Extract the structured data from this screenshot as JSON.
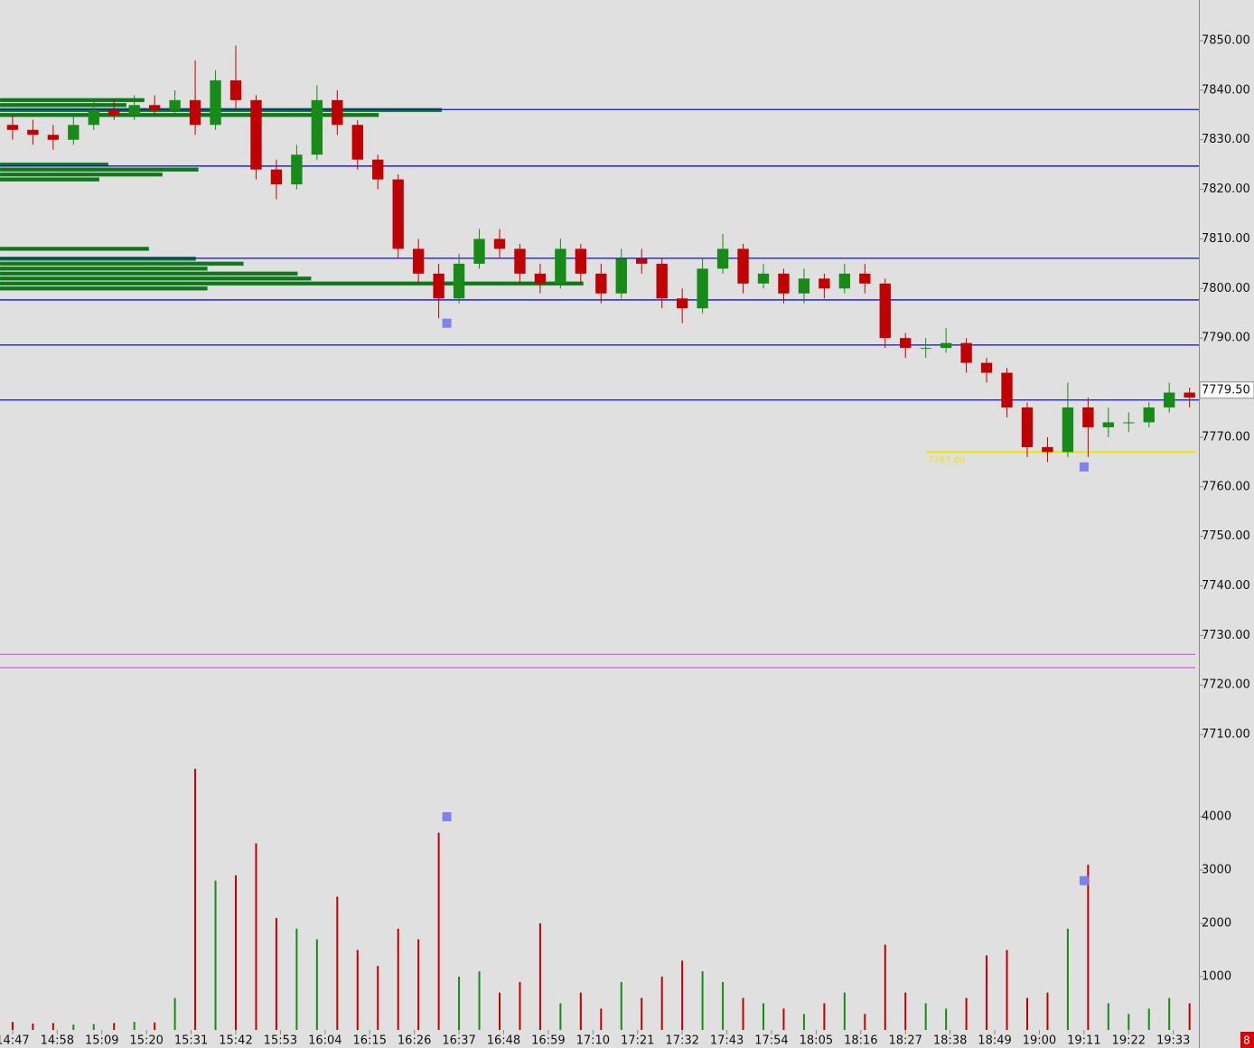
{
  "chart_data": [
    {
      "type": "candlestick",
      "x": [
        0,
        5,
        10,
        15,
        20,
        25,
        30,
        35,
        40,
        45,
        50,
        55,
        60,
        65,
        70,
        75,
        80,
        85,
        90,
        95,
        100,
        105,
        110,
        115,
        120,
        125,
        130,
        135,
        140,
        145,
        150,
        155,
        160,
        165,
        170,
        175,
        180,
        185,
        190,
        195,
        200,
        205,
        210,
        215,
        220,
        225,
        230,
        235,
        240,
        245,
        250,
        255,
        260,
        265,
        270,
        275,
        280,
        285,
        290
      ],
      "open": [
        7833,
        7832,
        7831,
        7830,
        7833,
        7836,
        7835,
        7837,
        7836,
        7838,
        7833,
        7842,
        7838,
        7824,
        7821,
        7827,
        7838,
        7833,
        7826,
        7822,
        7808,
        7803,
        7798,
        7805,
        7810,
        7808,
        7803,
        7801,
        7808,
        7803,
        7799,
        7806,
        7805,
        7798,
        7796,
        7804,
        7808,
        7801,
        7803,
        7799,
        7802,
        7800,
        7803,
        7801,
        7790,
        7788,
        7788,
        7789,
        7785,
        7783,
        7776,
        7768,
        7767,
        7776,
        7772,
        7773,
        7773,
        7776,
        7779
      ],
      "high": [
        7835,
        7834,
        7833,
        7835,
        7838,
        7838,
        7839,
        7839,
        7840,
        7846,
        7844,
        7849,
        7839,
        7826,
        7829,
        7841,
        7840,
        7834,
        7827,
        7823,
        7810,
        7805,
        7807,
        7812,
        7812,
        7809,
        7805,
        7810,
        7809,
        7805,
        7808,
        7808,
        7806,
        7800,
        7806,
        7811,
        7809,
        7805,
        7804,
        7804,
        7803,
        7805,
        7805,
        7802,
        7791,
        7790,
        7792,
        7790,
        7786,
        7784,
        7777,
        7770,
        7781,
        7778,
        7776,
        7775,
        7777,
        7781,
        7780
      ],
      "low": [
        7830,
        7829,
        7828,
        7829,
        7832,
        7834,
        7834,
        7835,
        7835,
        7831,
        7832,
        7836,
        7822,
        7818,
        7820,
        7826,
        7831,
        7824,
        7820,
        7806,
        7801,
        7794,
        7797,
        7804,
        7806,
        7801,
        7799,
        7800,
        7801,
        7797,
        7798,
        7803,
        7796,
        7793,
        7795,
        7803,
        7799,
        7800,
        7797,
        7797,
        7798,
        7799,
        7799,
        7788,
        7786,
        7786,
        7787,
        7783,
        7781,
        7774,
        7766,
        7765,
        7766,
        7766,
        7770,
        7771,
        7772,
        7775,
        7776
      ],
      "close": [
        7832,
        7831,
        7830,
        7833,
        7836,
        7835,
        7837,
        7836,
        7838,
        7833,
        7842,
        7838,
        7824,
        7821,
        7827,
        7838,
        7833,
        7826,
        7822,
        7808,
        7803,
        7798,
        7805,
        7810,
        7808,
        7803,
        7801,
        7808,
        7803,
        7799,
        7806,
        7805,
        7798,
        7796,
        7804,
        7808,
        7801,
        7803,
        7799,
        7802,
        7800,
        7803,
        7801,
        7790,
        7788,
        7788,
        7789,
        7785,
        7783,
        7776,
        7768,
        7767,
        7776,
        7772,
        7773,
        7773,
        7776,
        7779,
        7778
      ],
      "up_color": "#178a17",
      "down_color": "#c00000",
      "xlim": [
        -3.1,
        292.3
      ],
      "xticks": [
        {
          "value": 0,
          "label": "14:47"
        },
        {
          "value": 11,
          "label": "14:58"
        },
        {
          "value": 22,
          "label": "15:09"
        },
        {
          "value": 33,
          "label": "15:20"
        },
        {
          "value": 44,
          "label": "15:31"
        },
        {
          "value": 55,
          "label": "15:42"
        },
        {
          "value": 66,
          "label": "15:53"
        },
        {
          "value": 77,
          "label": "16:04"
        },
        {
          "value": 88,
          "label": "16:15"
        },
        {
          "value": 99,
          "label": "16:26"
        },
        {
          "value": 110,
          "label": "16:37"
        },
        {
          "value": 121,
          "label": "16:48"
        },
        {
          "value": 132,
          "label": "16:59"
        },
        {
          "value": 143,
          "label": "17:10"
        },
        {
          "value": 154,
          "label": "17:21"
        },
        {
          "value": 165,
          "label": "17:32"
        },
        {
          "value": 176,
          "label": "17:43"
        },
        {
          "value": 187,
          "label": "17:54"
        },
        {
          "value": 198,
          "label": "18:05"
        },
        {
          "value": 209,
          "label": "18:16"
        },
        {
          "value": 220,
          "label": "18:27"
        },
        {
          "value": 231,
          "label": "18:38"
        },
        {
          "value": 242,
          "label": "18:49"
        },
        {
          "value": 253,
          "label": "19:00"
        },
        {
          "value": 264,
          "label": "19:11"
        },
        {
          "value": 275,
          "label": "19:22"
        },
        {
          "value": 286,
          "label": "19:33"
        }
      ],
      "ylim": [
        7705.1,
        7858.2
      ],
      "yticks": [
        {
          "value": 7850,
          "label": "7850.00"
        },
        {
          "value": 7840,
          "label": "7840.00"
        },
        {
          "value": 7830,
          "label": "7830.00"
        },
        {
          "value": 7820,
          "label": "7820.00"
        },
        {
          "value": 7810,
          "label": "7810.00"
        },
        {
          "value": 7800,
          "label": "7800.00"
        },
        {
          "value": 7790,
          "label": "7790.00"
        },
        {
          "value": 7780,
          "label": "7780.00"
        },
        {
          "value": 7770,
          "label": "7770.00"
        },
        {
          "value": 7760,
          "label": "7760.00"
        },
        {
          "value": 7750,
          "label": "7750.00"
        },
        {
          "value": 7740,
          "label": "7740.00"
        },
        {
          "value": 7730,
          "label": "7730.00"
        },
        {
          "value": 7720,
          "label": "7720.00"
        },
        {
          "value": 7710,
          "label": "7710.00"
        }
      ],
      "levels": {
        "values": [
          7836.1,
          7824.7,
          7806.1,
          7797.7,
          7788.6,
          7777.5
        ],
        "color": "#1010d0"
      },
      "bands": {
        "values": [
          7726.2,
          7723.5
        ],
        "color": "#d040d0"
      },
      "key_level": {
        "value": 7767,
        "label": "7767.00",
        "color": "#e8e800"
      },
      "last_price": {
        "value": 7779.5,
        "label": "7779.50"
      },
      "markers": {
        "x": [
          107,
          264
        ],
        "values": [
          7793,
          7764
        ],
        "color": "#8080f0"
      },
      "volume_profile": {
        "prices": [
          7838,
          7837,
          7836,
          7835,
          7825,
          7824,
          7823,
          7822,
          7808,
          7806,
          7805,
          7804,
          7803,
          7802,
          7801,
          7800
        ],
        "values": [
          160,
          140,
          490,
          420,
          120,
          220,
          180,
          110,
          165,
          217,
          270,
          230,
          330,
          345,
          647,
          230
        ],
        "xlim": [
          0,
          1330
        ],
        "color": "#1f6e1f"
      }
    },
    {
      "type": "bar",
      "values": [
        150,
        120,
        130,
        100,
        110,
        130,
        150,
        140,
        600,
        4900,
        2800,
        2900,
        3500,
        2100,
        1900,
        1700,
        2500,
        1500,
        1200,
        1900,
        1700,
        3700,
        1000,
        1100,
        700,
        900,
        2000,
        500,
        700,
        400,
        900,
        600,
        1000,
        1300,
        1100,
        900,
        600,
        500,
        400,
        300,
        500,
        700,
        300,
        1600,
        700,
        500,
        400,
        600,
        1400,
        1500,
        600,
        700,
        1900,
        3100,
        500,
        300,
        400,
        600,
        500
      ],
      "ylim": [
        0,
        4746
      ],
      "yticks": [
        1000,
        2000,
        3000,
        4000
      ],
      "markers": {
        "x": [
          107,
          264
        ],
        "values": [
          4000,
          2800
        ]
      },
      "corner_badge": "8"
    }
  ]
}
